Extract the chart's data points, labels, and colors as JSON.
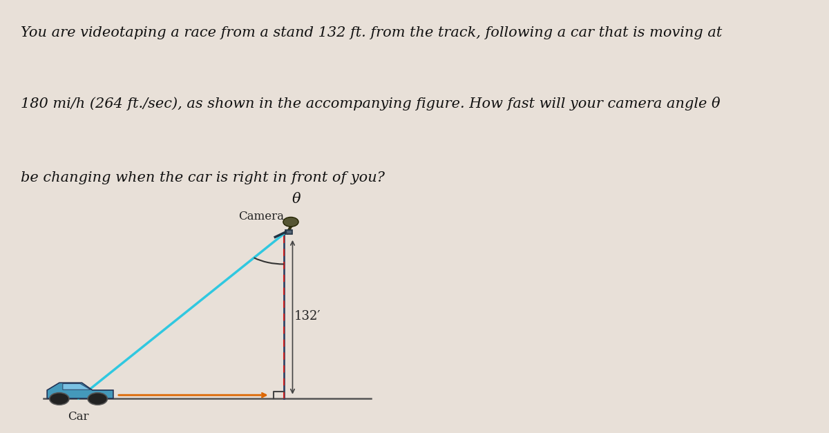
{
  "background_color": "#e8e0d8",
  "figure_bg": "#b8e8ee",
  "text_paragraph_line1": "You are videotaping a race from a stand 132 ft. from the track, following a car that is moving at",
  "text_paragraph_line2": "180 mi/h (264 ft./sec), as shown in the accompanying figure. How fast will your camera angle θ",
  "text_paragraph_line3": "be changing when the car is right in front of you?",
  "text_fontsize": 15.0,
  "camera_label": "Camera",
  "car_label": "Car",
  "distance_label": "132′",
  "angle_label": "θ",
  "line_color": "#30c8e0",
  "pole_dashed_color": "#cc2222",
  "pole_solid_color": "#334466",
  "ground_color": "#555555",
  "arrow_color": "#dd6600",
  "right_angle_color": "#444444",
  "text_color": "#111111"
}
